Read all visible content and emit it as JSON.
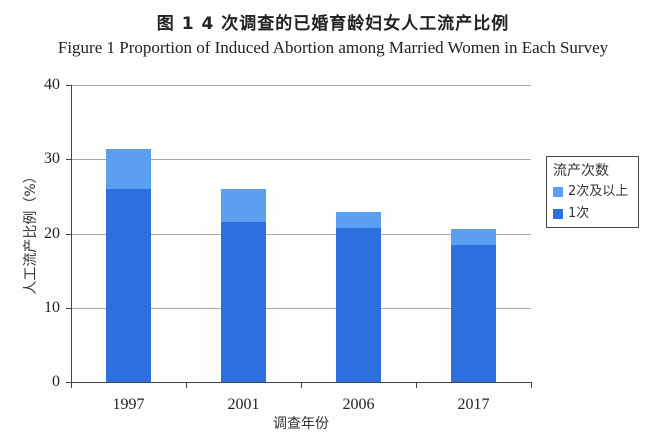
{
  "title": {
    "cn": "图 1   4 次调查的已婚育龄妇女人工流产比例",
    "en": "Figure 1    Proportion of Induced Abortion among Married Women in Each Survey"
  },
  "colors": {
    "one_time": "#2e6fdf",
    "two_plus": "#5c9ef0"
  },
  "axis": {
    "ylabel": "人工流产比例（%）",
    "xlabel": "调查年份",
    "yticks": [
      "0",
      "10",
      "20",
      "30",
      "40"
    ],
    "xticks": [
      "1997",
      "2001",
      "2006",
      "2017"
    ]
  },
  "legend": {
    "title": "流产次数",
    "items": [
      {
        "label": "2次及以上",
        "color": "#5c9ef0"
      },
      {
        "label": "1次",
        "color": "#2e6fdf"
      }
    ]
  },
  "chart_data": {
    "type": "bar",
    "stacked": true,
    "title": "图1 4次调查的已婚育龄妇女人工流产比例 / Figure 1 Proportion of Induced Abortion among Married Women in Each Survey",
    "categories": [
      "1997",
      "2001",
      "2006",
      "2017"
    ],
    "series": [
      {
        "name": "1次",
        "values": [
          26.0,
          21.6,
          20.7,
          18.4
        ],
        "color": "#2e6fdf"
      },
      {
        "name": "2次及以上",
        "values": [
          5.4,
          4.4,
          2.2,
          2.2
        ],
        "color": "#5c9ef0"
      }
    ],
    "totals": [
      31.4,
      26.0,
      22.9,
      20.6
    ],
    "xlabel": "调查年份",
    "ylabel": "人工流产比例（%）",
    "ylim": [
      0,
      40
    ],
    "yticks": [
      0,
      10,
      20,
      30,
      40
    ],
    "grid": "horizontal dotted",
    "legend_title": "流产次数",
    "legend_position": "right"
  }
}
